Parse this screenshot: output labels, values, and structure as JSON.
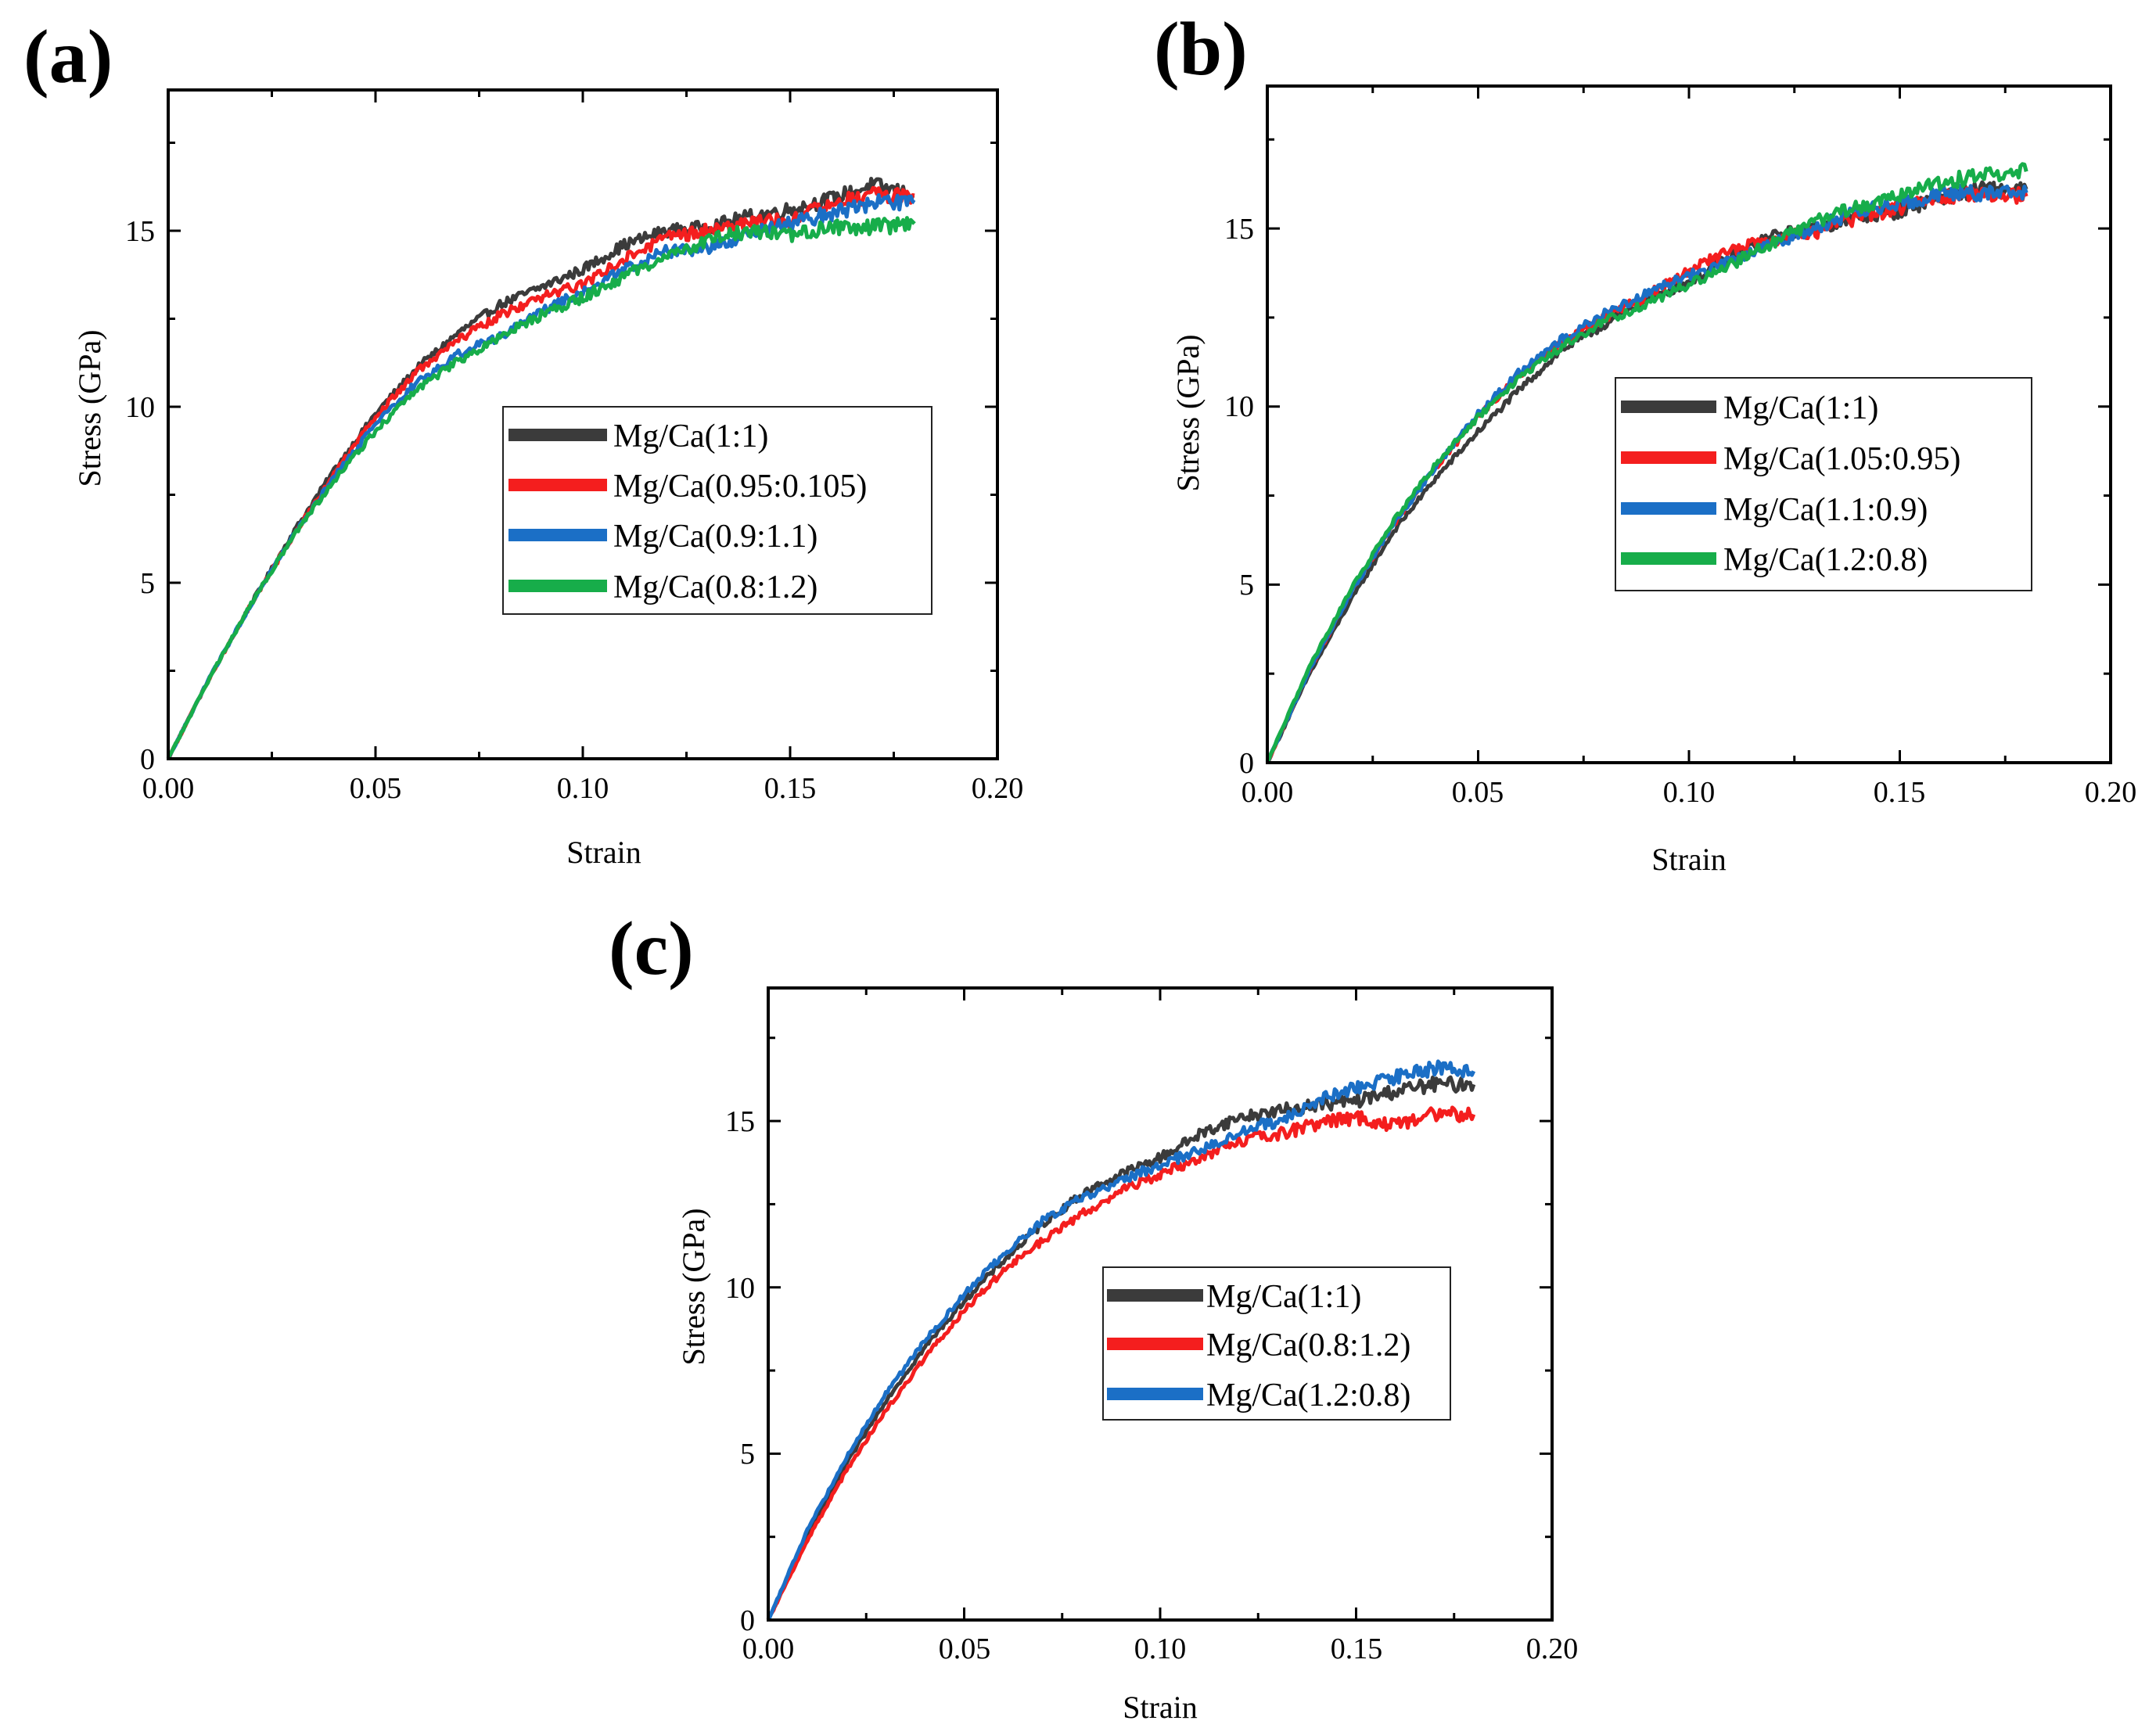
{
  "colors": {
    "black": "#3b3b3b",
    "red": "#f41e1e",
    "blue": "#1b6fc6",
    "green": "#17ad4a"
  },
  "chart_data": [
    {
      "panel": "(a)",
      "type": "line",
      "xlabel": "Strain",
      "ylabel": "Stress (GPa)",
      "xlim": [
        0,
        0.2
      ],
      "ylim": [
        0,
        19
      ],
      "xticks": [
        "0.00",
        "0.05",
        "0.10",
        "0.15",
        "0.20"
      ],
      "yticks": [
        "0",
        "5",
        "10",
        "15"
      ],
      "legend_position": "center-right",
      "series": [
        {
          "name": "Mg/Ca(1:1)",
          "color": "#3b3b3b",
          "x": [
            0,
            0.01,
            0.02,
            0.03,
            0.04,
            0.05,
            0.06,
            0.07,
            0.08,
            0.09,
            0.1,
            0.11,
            0.12,
            0.13,
            0.14,
            0.15,
            0.16,
            0.17,
            0.18
          ],
          "y": [
            0,
            2.3,
            4.4,
            6.4,
            8.2,
            9.8,
            11.1,
            12.1,
            12.9,
            13.4,
            13.9,
            14.6,
            15.0,
            15.1,
            15.4,
            15.6,
            15.9,
            16.3,
            16.0
          ]
        },
        {
          "name": "Mg/Ca(0.95:0.105)",
          "color": "#f41e1e",
          "x": [
            0,
            0.01,
            0.02,
            0.03,
            0.04,
            0.05,
            0.06,
            0.07,
            0.08,
            0.09,
            0.1,
            0.11,
            0.12,
            0.13,
            0.14,
            0.15,
            0.16,
            0.17,
            0.18
          ],
          "y": [
            0,
            2.3,
            4.4,
            6.3,
            8.1,
            9.7,
            11.0,
            11.9,
            12.6,
            13.1,
            13.5,
            14.2,
            14.8,
            15.0,
            15.2,
            15.3,
            15.8,
            16.0,
            16.0
          ]
        },
        {
          "name": "Mg/Ca(0.9:1.1)",
          "color": "#1b6fc6",
          "x": [
            0,
            0.01,
            0.02,
            0.03,
            0.04,
            0.05,
            0.06,
            0.07,
            0.08,
            0.09,
            0.1,
            0.11,
            0.12,
            0.13,
            0.14,
            0.15,
            0.16,
            0.17,
            0.18
          ],
          "y": [
            0,
            2.3,
            4.4,
            6.3,
            8.0,
            9.5,
            10.7,
            11.5,
            12.0,
            12.7,
            13.3,
            13.9,
            14.4,
            14.5,
            14.9,
            15.2,
            15.5,
            15.8,
            15.8
          ]
        },
        {
          "name": "Mg/Ca(0.8:1.2)",
          "color": "#17ad4a",
          "x": [
            0,
            0.01,
            0.02,
            0.03,
            0.04,
            0.05,
            0.06,
            0.07,
            0.08,
            0.09,
            0.1,
            0.11,
            0.12,
            0.13,
            0.14,
            0.15,
            0.16,
            0.17,
            0.18
          ],
          "y": [
            0,
            2.3,
            4.4,
            6.3,
            7.9,
            9.3,
            10.5,
            11.3,
            12.0,
            12.6,
            13.1,
            13.7,
            14.3,
            14.7,
            15.0,
            14.9,
            15.1,
            15.1,
            15.2
          ]
        }
      ]
    },
    {
      "panel": "(b)",
      "type": "line",
      "xlabel": "Strain",
      "ylabel": "Stress (GPa)",
      "xlim": [
        0,
        0.2
      ],
      "ylim": [
        0,
        19
      ],
      "xticks": [
        "0.00",
        "0.05",
        "0.10",
        "0.15",
        "0.20"
      ],
      "yticks": [
        "0",
        "5",
        "10",
        "15"
      ],
      "legend_position": "center-right",
      "series": [
        {
          "name": "Mg/Ca(1:1)",
          "color": "#3b3b3b",
          "x": [
            0,
            0.01,
            0.02,
            0.03,
            0.04,
            0.05,
            0.06,
            0.07,
            0.08,
            0.09,
            0.1,
            0.11,
            0.12,
            0.13,
            0.14,
            0.15,
            0.16,
            0.17,
            0.18
          ],
          "y": [
            0,
            2.5,
            4.6,
            6.5,
            8.0,
            9.3,
            10.5,
            11.6,
            12.3,
            13.0,
            13.5,
            14.2,
            14.8,
            15.0,
            15.3,
            15.5,
            15.9,
            16.1,
            16.1
          ]
        },
        {
          "name": "Mg/Ca(1.05:0.95)",
          "color": "#f41e1e",
          "x": [
            0,
            0.01,
            0.02,
            0.03,
            0.04,
            0.05,
            0.06,
            0.07,
            0.08,
            0.09,
            0.1,
            0.11,
            0.12,
            0.13,
            0.14,
            0.15,
            0.16,
            0.17,
            0.18
          ],
          "y": [
            0,
            2.6,
            4.8,
            6.7,
            8.3,
            9.7,
            10.9,
            11.8,
            12.5,
            13.1,
            13.8,
            14.4,
            14.7,
            14.9,
            15.3,
            15.6,
            15.9,
            16.0,
            15.9
          ]
        },
        {
          "name": "Mg/Ca(1.1:0.9)",
          "color": "#1b6fc6",
          "x": [
            0,
            0.01,
            0.02,
            0.03,
            0.04,
            0.05,
            0.06,
            0.07,
            0.08,
            0.09,
            0.1,
            0.11,
            0.12,
            0.13,
            0.14,
            0.15,
            0.16,
            0.17,
            0.18
          ],
          "y": [
            0,
            2.6,
            4.8,
            6.7,
            8.3,
            9.8,
            11.0,
            11.9,
            12.6,
            13.2,
            13.7,
            14.1,
            14.6,
            15.0,
            15.5,
            15.7,
            16.0,
            16.0,
            16.0
          ]
        },
        {
          "name": "Mg/Ca(1.2:0.8)",
          "color": "#17ad4a",
          "x": [
            0,
            0.01,
            0.02,
            0.03,
            0.04,
            0.05,
            0.06,
            0.07,
            0.08,
            0.09,
            0.1,
            0.11,
            0.12,
            0.13,
            0.14,
            0.15,
            0.16,
            0.17,
            0.18
          ],
          "y": [
            0,
            2.7,
            4.9,
            6.8,
            8.4,
            9.7,
            10.8,
            11.7,
            12.4,
            12.9,
            13.4,
            14.0,
            14.6,
            15.2,
            15.6,
            15.9,
            16.3,
            16.5,
            16.6
          ]
        }
      ]
    },
    {
      "panel": "(c)",
      "type": "line",
      "xlabel": "Strain",
      "ylabel": "Stress (GPa)",
      "xlim": [
        0,
        0.2
      ],
      "ylim": [
        0,
        19
      ],
      "xticks": [
        "0.00",
        "0.05",
        "0.10",
        "0.15",
        "0.20"
      ],
      "yticks": [
        "0",
        "5",
        "10",
        "15"
      ],
      "legend_position": "center-right",
      "series": [
        {
          "name": "Mg/Ca(1:1)",
          "color": "#3b3b3b",
          "x": [
            0,
            0.01,
            0.02,
            0.03,
            0.04,
            0.05,
            0.06,
            0.07,
            0.08,
            0.09,
            0.1,
            0.11,
            0.12,
            0.13,
            0.14,
            0.15,
            0.16,
            0.17,
            0.18
          ],
          "y": [
            0,
            2.5,
            4.7,
            6.6,
            8.2,
            9.6,
            10.8,
            11.9,
            12.8,
            13.4,
            13.9,
            14.6,
            15.1,
            15.3,
            15.5,
            15.6,
            15.9,
            16.1,
            16.1
          ]
        },
        {
          "name": "Mg/Ca(0.8:1.2)",
          "color": "#f41e1e",
          "x": [
            0,
            0.01,
            0.02,
            0.03,
            0.04,
            0.05,
            0.06,
            0.07,
            0.08,
            0.09,
            0.1,
            0.11,
            0.12,
            0.13,
            0.14,
            0.15,
            0.16,
            0.17,
            0.18
          ],
          "y": [
            0,
            2.4,
            4.5,
            6.3,
            7.9,
            9.3,
            10.5,
            11.4,
            12.2,
            12.9,
            13.4,
            13.9,
            14.4,
            14.6,
            14.9,
            15.1,
            14.9,
            15.2,
            15.2
          ]
        },
        {
          "name": "Mg/Ca(1.2:0.8)",
          "color": "#1b6fc6",
          "x": [
            0,
            0.01,
            0.02,
            0.03,
            0.04,
            0.05,
            0.06,
            0.07,
            0.08,
            0.09,
            0.1,
            0.11,
            0.12,
            0.13,
            0.14,
            0.15,
            0.16,
            0.17,
            0.18
          ],
          "y": [
            0,
            2.7,
            4.9,
            6.8,
            8.4,
            9.8,
            11.0,
            12.0,
            12.7,
            13.2,
            13.7,
            14.1,
            14.7,
            15.0,
            15.6,
            16.0,
            16.3,
            16.6,
            16.5
          ]
        }
      ]
    }
  ]
}
